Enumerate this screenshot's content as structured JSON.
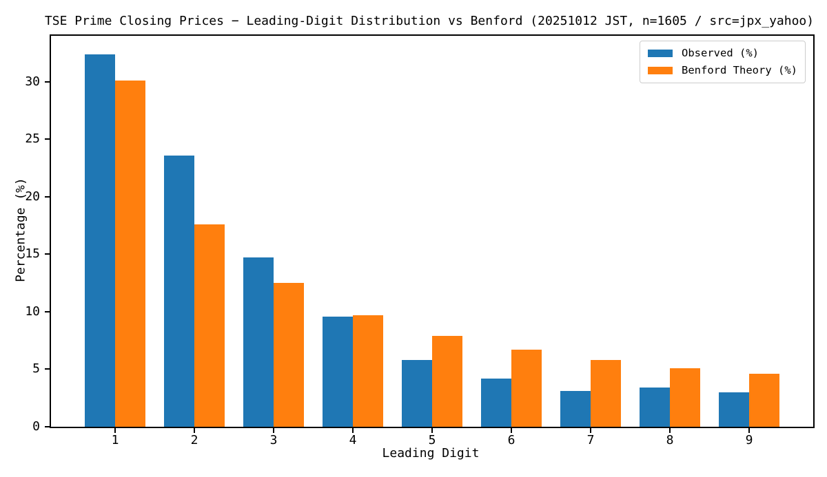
{
  "chart_data": {
    "type": "bar",
    "title": "TSE Prime Closing Prices − Leading-Digit Distribution vs Benford (20251012 JST, n=1605 / src=jpx_yahoo)",
    "xlabel": "Leading Digit",
    "ylabel": "Percentage (%)",
    "categories": [
      "1",
      "2",
      "3",
      "4",
      "5",
      "6",
      "7",
      "8",
      "9"
    ],
    "series": [
      {
        "name": "Observed (%)",
        "color": "#1f77b4",
        "values": [
          32.4,
          23.6,
          14.7,
          9.6,
          5.8,
          4.2,
          3.1,
          3.4,
          3.0
        ]
      },
      {
        "name": "Benford Theory (%)",
        "color": "#ff7f0e",
        "values": [
          30.1,
          17.6,
          12.5,
          9.7,
          7.9,
          6.7,
          5.8,
          5.1,
          4.6
        ]
      }
    ],
    "ylim": [
      0,
      34
    ],
    "yticks": [
      0,
      5,
      10,
      15,
      20,
      25,
      30
    ],
    "xlim_note": "digits 1-9 evenly spaced",
    "grid": false,
    "legend_position": "upper right",
    "background": "#ffffff",
    "axis_color": "#000000"
  }
}
